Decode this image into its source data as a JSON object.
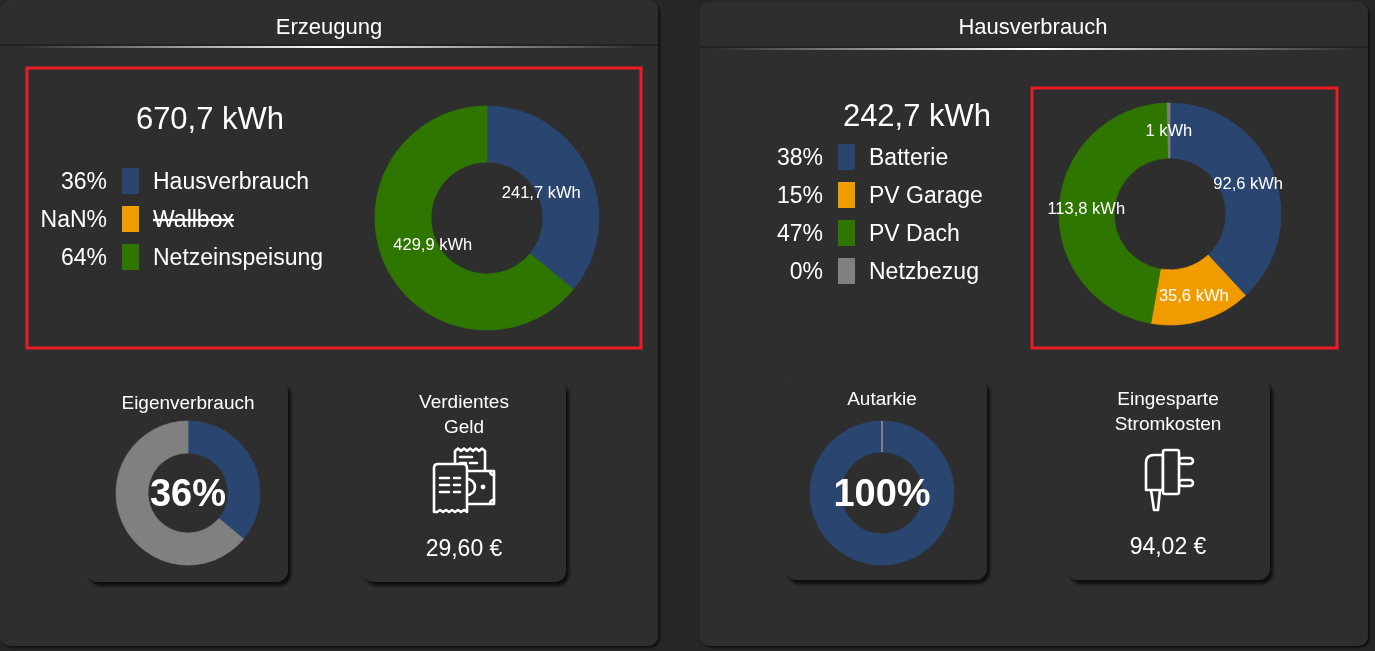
{
  "chart_data": [
    {
      "type": "donut",
      "title": "Erzeugung",
      "subtitle": "670,7 kWh",
      "categories": [
        "Hausverbrauch",
        "Wallbox",
        "Netzeinspeisung"
      ],
      "values": [
        241.7,
        null,
        429.9
      ],
      "colors": [
        "#2a4570",
        "#f09c00",
        "#2e7600"
      ],
      "value_labels": [
        "241,7 kWh",
        null,
        "429,9 kWh"
      ],
      "annotations": [
        "36%",
        "NaN%",
        "64%"
      ],
      "legend": "left"
    },
    {
      "type": "donut",
      "title": "Hausverbrauch",
      "subtitle": "242,7 kWh",
      "categories": [
        "Batterie",
        "PV Garage",
        "PV Dach",
        "Netzbezug"
      ],
      "values": [
        92.6,
        35.6,
        113.8,
        1
      ],
      "colors": [
        "#2a4570",
        "#f09c00",
        "#2e7600",
        "#808080"
      ],
      "value_labels": [
        "92,6 kWh",
        "35,6 kWh",
        "113,8 kWh",
        "1 kWh"
      ],
      "annotations": [
        "38%",
        "15%",
        "47%",
        "0%"
      ],
      "legend": "left"
    },
    {
      "type": "donut",
      "title": "Eigenverbrauch",
      "categories": [
        null,
        null
      ],
      "values": [
        36,
        64
      ],
      "colors": [
        "#2a4570",
        "#808080"
      ],
      "annotations": [
        "36%"
      ]
    },
    {
      "type": "other",
      "title": "Verdientes Geld",
      "annotations": [
        "29,60 €"
      ]
    },
    {
      "type": "donut",
      "title": "Autarkie",
      "categories": [
        null,
        null
      ],
      "values": [
        100,
        0
      ],
      "colors": [
        "#2a4570",
        "#808080"
      ],
      "annotations": [
        "100%"
      ]
    },
    {
      "type": "other",
      "title": "Eingesparte Stromkosten",
      "annotations": [
        "94,02 €"
      ]
    }
  ]
}
